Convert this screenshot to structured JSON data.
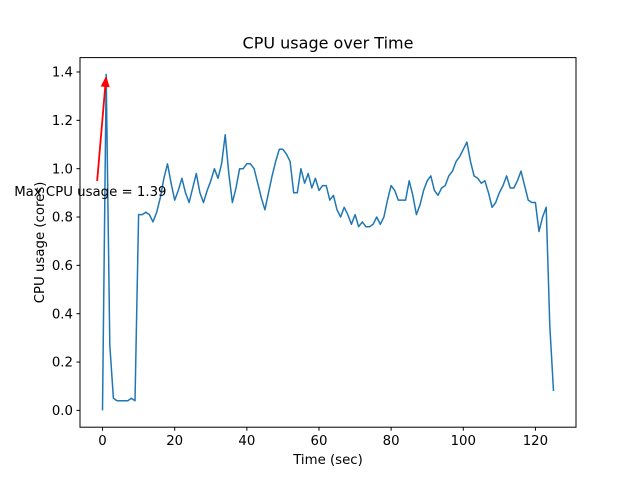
{
  "figure": {
    "background": "#ffffff",
    "frame_color": "#000000"
  },
  "chart_data": {
    "type": "line",
    "title": "CPU usage over Time",
    "xlabel": "Time (sec)",
    "ylabel": "CPU usage (cores)",
    "line_color": "#1f77b4",
    "grid": false,
    "legend": null,
    "xlim": [
      -6.25,
      131.25
    ],
    "ylim": [
      -0.0695,
      1.4595
    ],
    "xticks": [
      0,
      20,
      40,
      60,
      80,
      100,
      120
    ],
    "xtick_labels": [
      "0",
      "20",
      "40",
      "60",
      "80",
      "100",
      "120"
    ],
    "yticks": [
      0.0,
      0.2,
      0.4,
      0.6,
      0.8,
      1.0,
      1.2,
      1.4
    ],
    "ytick_labels": [
      "0.0",
      "0.2",
      "0.4",
      "0.6",
      "0.8",
      "1.0",
      "1.2",
      "1.4"
    ],
    "max_value": 1.39,
    "x": [
      0,
      1,
      2,
      3,
      4,
      5,
      6,
      7,
      8,
      9,
      10,
      11,
      12,
      13,
      14,
      15,
      16,
      17,
      18,
      19,
      20,
      21,
      22,
      23,
      24,
      25,
      26,
      27,
      28,
      29,
      30,
      31,
      32,
      33,
      34,
      35,
      36,
      37,
      38,
      39,
      40,
      41,
      42,
      43,
      44,
      45,
      46,
      47,
      48,
      49,
      50,
      51,
      52,
      53,
      54,
      55,
      56,
      57,
      58,
      59,
      60,
      61,
      62,
      63,
      64,
      65,
      66,
      67,
      68,
      69,
      70,
      71,
      72,
      73,
      74,
      75,
      76,
      77,
      78,
      79,
      80,
      81,
      82,
      83,
      84,
      85,
      86,
      87,
      88,
      89,
      90,
      91,
      92,
      93,
      94,
      95,
      96,
      97,
      98,
      99,
      100,
      101,
      102,
      103,
      104,
      105,
      106,
      107,
      108,
      109,
      110,
      111,
      112,
      113,
      114,
      115,
      116,
      117,
      118,
      119,
      120,
      121,
      122,
      123,
      124,
      125
    ],
    "y": [
      0.0,
      1.39,
      0.27,
      0.05,
      0.04,
      0.04,
      0.04,
      0.04,
      0.05,
      0.04,
      0.81,
      0.81,
      0.82,
      0.81,
      0.78,
      0.82,
      0.88,
      0.96,
      1.02,
      0.94,
      0.87,
      0.91,
      0.96,
      0.9,
      0.86,
      0.92,
      0.98,
      0.9,
      0.86,
      0.91,
      0.95,
      1.0,
      0.96,
      1.02,
      1.14,
      0.98,
      0.86,
      0.92,
      1.0,
      1.0,
      1.02,
      1.02,
      1.0,
      0.94,
      0.88,
      0.83,
      0.9,
      0.97,
      1.03,
      1.08,
      1.08,
      1.06,
      1.03,
      0.9,
      0.9,
      1.0,
      0.94,
      0.98,
      0.92,
      0.96,
      0.91,
      0.93,
      0.93,
      0.87,
      0.89,
      0.83,
      0.8,
      0.84,
      0.81,
      0.77,
      0.81,
      0.76,
      0.78,
      0.76,
      0.76,
      0.77,
      0.8,
      0.77,
      0.8,
      0.87,
      0.93,
      0.91,
      0.87,
      0.87,
      0.87,
      0.95,
      0.89,
      0.81,
      0.85,
      0.91,
      0.95,
      0.97,
      0.91,
      0.89,
      0.92,
      0.93,
      0.97,
      0.99,
      1.03,
      1.05,
      1.08,
      1.11,
      1.03,
      0.97,
      0.96,
      0.94,
      0.95,
      0.9,
      0.84,
      0.86,
      0.9,
      0.93,
      0.97,
      0.92,
      0.92,
      0.95,
      0.99,
      0.93,
      0.87,
      0.86,
      0.86,
      0.74,
      0.8,
      0.84,
      0.35,
      0.08
    ],
    "annotations": [
      {
        "text": "Max CPU usage = 1.39",
        "xy": [
          1,
          1.39
        ],
        "xytext": [
          -24.5,
          0.887
        ],
        "color": "#ff0000",
        "arrow": true
      }
    ]
  }
}
